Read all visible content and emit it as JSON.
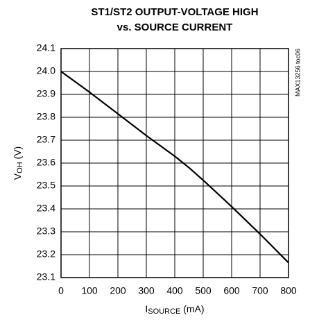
{
  "chart_data": {
    "type": "line",
    "title": [
      "ST1/ST2 OUTPUT-VOLTAGE HIGH",
      "vs. SOURCE CURRENT"
    ],
    "ylabel": {
      "main": "V",
      "sub": "OH",
      "unit": " (V)"
    },
    "xlabel": {
      "main": "I",
      "sub": "SOURCE",
      "unit": " (mA)"
    },
    "note": "MAX13256 toc06",
    "x": [
      0,
      100,
      200,
      300,
      400,
      450,
      500,
      600,
      700,
      800
    ],
    "series": [
      {
        "color": "#000000",
        "values": [
          24.0,
          23.91,
          23.815,
          23.72,
          23.63,
          23.58,
          23.525,
          23.41,
          23.29,
          23.165
        ]
      }
    ],
    "xlim": [
      0,
      800
    ],
    "xticks": [
      0,
      100,
      200,
      300,
      400,
      500,
      600,
      700,
      800
    ],
    "ylim": [
      23.1,
      24.1
    ],
    "yticks": [
      23.1,
      23.2,
      23.3,
      23.4,
      23.5,
      23.6,
      23.7,
      23.8,
      23.9,
      {
        "value": 24,
        "label": "24.0"
      },
      24.1
    ],
    "grid": true
  }
}
